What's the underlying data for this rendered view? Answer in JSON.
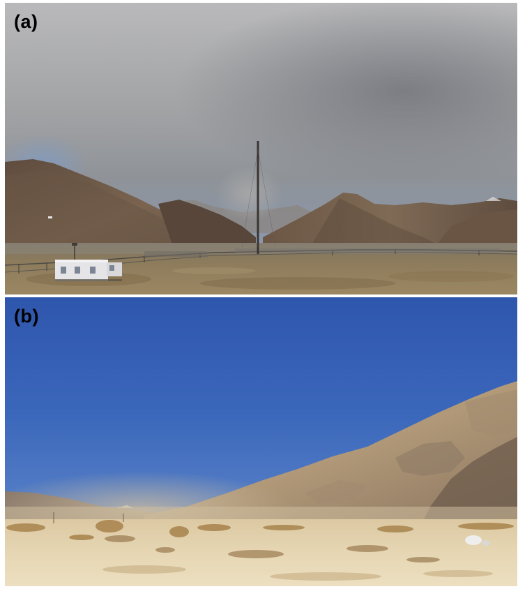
{
  "panels": [
    {
      "label": "(a)"
    },
    {
      "label": "(b)"
    }
  ],
  "colors": {
    "storm_cloud": "#9a9b9d",
    "mountain_brown": "#6f5c4a",
    "dry_grass": "#8a7552",
    "clear_sky": "#3a64b8",
    "sand": "#e4d3ad",
    "dusty_hills": "#b39c7c"
  }
}
